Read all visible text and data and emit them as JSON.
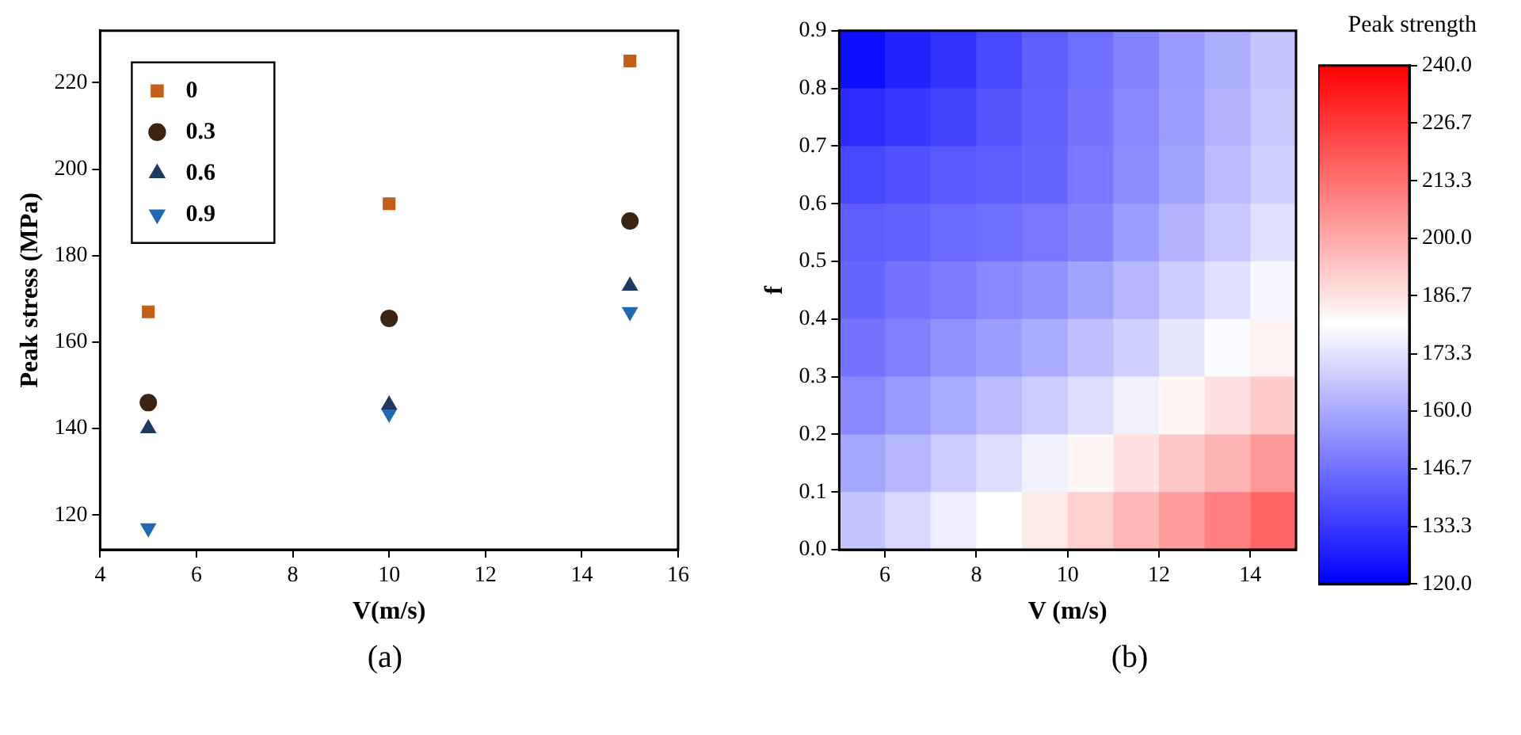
{
  "chart_data": [
    {
      "type": "scatter",
      "xlabel": "V(m/s)",
      "ylabel": "Peak stress (MPa)",
      "x": [
        5,
        10,
        15
      ],
      "xlim": [
        4,
        16
      ],
      "xticks": [
        4,
        6,
        8,
        10,
        12,
        14,
        16
      ],
      "ylim": [
        112,
        232
      ],
      "yticks": [
        120,
        140,
        160,
        180,
        200,
        220
      ],
      "legend": "top left",
      "annotations": [
        "(a)"
      ],
      "series": [
        {
          "name": "0",
          "color": "#c0601a",
          "marker": "square",
          "values": [
            167,
            192,
            225
          ]
        },
        {
          "name": "0.3",
          "color": "#3b2414",
          "marker": "circle",
          "values": [
            146,
            165.5,
            188
          ]
        },
        {
          "name": "0.6",
          "color": "#1f3a60",
          "marker": "triangle",
          "values": [
            140,
            145.5,
            173
          ]
        },
        {
          "name": "0.9",
          "color": "#1f6ab0",
          "marker": "triangle_down",
          "values": [
            117,
            143.5,
            167
          ]
        }
      ]
    },
    {
      "type": "heatmap",
      "xlabel": "V (m/s)",
      "ylabel": "f",
      "clabel": "Peak strength",
      "annotations": [
        "(b)"
      ],
      "x": [
        5.5,
        6.5,
        7.5,
        8.5,
        9.5,
        10.5,
        11.5,
        12.5,
        13.5,
        14.5
      ],
      "xlim": [
        5,
        15
      ],
      "xticks": [
        6,
        8,
        10,
        12,
        14
      ],
      "ylim": [
        0,
        0.9
      ],
      "yticks": [
        {
          "value": 0,
          "label": "0.0"
        },
        0.1,
        0.2,
        0.3,
        0.4,
        0.5,
        0.6,
        0.7,
        0.8,
        0.9
      ],
      "clim": [
        120,
        240
      ],
      "cticks": [
        {
          "value": 120,
          "label": "120.0"
        },
        133.3,
        146.7,
        {
          "value": 160,
          "label": "160.0"
        },
        173.3,
        186.7,
        {
          "value": 200,
          "label": "200.0"
        },
        213.3,
        226.7,
        {
          "value": 240,
          "label": "240.0"
        }
      ],
      "cells": [
        [
          123,
          128,
          132,
          137,
          142,
          146,
          151,
          156,
          161,
          166
        ],
        [
          130,
          133,
          136,
          140,
          143,
          147,
          152,
          157,
          162,
          167
        ],
        [
          137,
          139,
          141,
          142,
          144,
          148,
          153,
          158,
          164,
          169
        ],
        [
          142,
          143,
          145,
          146,
          148,
          151,
          157,
          162,
          167,
          173
        ],
        [
          144,
          147,
          149,
          152,
          154,
          158,
          163,
          168,
          173,
          178
        ],
        [
          147,
          150,
          154,
          157,
          160,
          165,
          169,
          174,
          179,
          183
        ],
        [
          152,
          156,
          160,
          164,
          168,
          172,
          177,
          182,
          187,
          192
        ],
        [
          159,
          163,
          168,
          172,
          177,
          182,
          187,
          193,
          198,
          204
        ],
        [
          166,
          171,
          176,
          180,
          185,
          191,
          197,
          203,
          210,
          216
        ]
      ]
    }
  ]
}
